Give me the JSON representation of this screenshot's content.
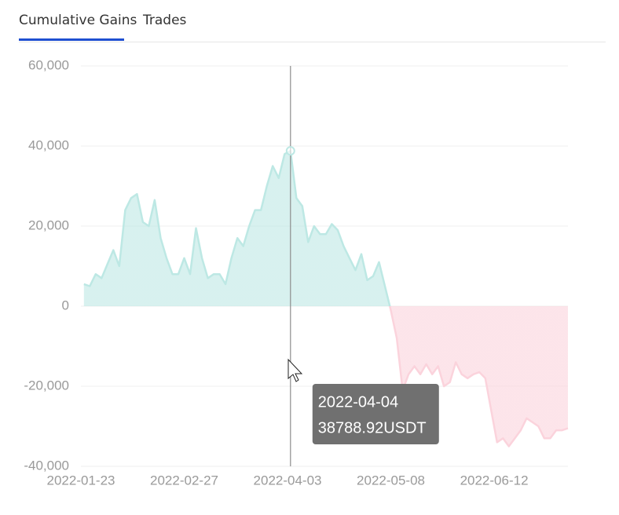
{
  "tabs": [
    {
      "label": "Cumulative Gains",
      "active": true
    },
    {
      "label": "Trades",
      "active": false
    }
  ],
  "chart_data": {
    "type": "area",
    "x": [
      "2022-01-24",
      "2022-01-26",
      "2022-01-28",
      "2022-01-30",
      "2022-02-01",
      "2022-02-03",
      "2022-02-05",
      "2022-02-07",
      "2022-02-09",
      "2022-02-11",
      "2022-02-13",
      "2022-02-15",
      "2022-02-17",
      "2022-02-19",
      "2022-02-21",
      "2022-02-23",
      "2022-02-25",
      "2022-02-27",
      "2022-03-01",
      "2022-03-03",
      "2022-03-05",
      "2022-03-07",
      "2022-03-09",
      "2022-03-11",
      "2022-03-13",
      "2022-03-15",
      "2022-03-17",
      "2022-03-19",
      "2022-03-21",
      "2022-03-23",
      "2022-03-25",
      "2022-03-27",
      "2022-03-29",
      "2022-03-31",
      "2022-04-02",
      "2022-04-04",
      "2022-04-06",
      "2022-04-08",
      "2022-04-10",
      "2022-04-12",
      "2022-04-14",
      "2022-04-16",
      "2022-04-18",
      "2022-04-20",
      "2022-04-22",
      "2022-04-24",
      "2022-04-26",
      "2022-04-28",
      "2022-04-30",
      "2022-05-02",
      "2022-05-04",
      "2022-05-06",
      "2022-05-08",
      "2022-05-10",
      "2022-05-12",
      "2022-05-14",
      "2022-05-16",
      "2022-05-18",
      "2022-05-20",
      "2022-05-22",
      "2022-05-24",
      "2022-05-26",
      "2022-05-28",
      "2022-05-30",
      "2022-06-01",
      "2022-06-03",
      "2022-06-05",
      "2022-06-07",
      "2022-06-09",
      "2022-06-11",
      "2022-06-13",
      "2022-06-15",
      "2022-06-17",
      "2022-06-19",
      "2022-06-21",
      "2022-06-23",
      "2022-06-25",
      "2022-06-27",
      "2022-06-29",
      "2022-07-01",
      "2022-07-03",
      "2022-07-05",
      "2022-07-07"
    ],
    "values": [
      5500,
      5000,
      8000,
      7000,
      10500,
      14000,
      10000,
      24000,
      27000,
      28000,
      21000,
      20000,
      26500,
      17000,
      12000,
      8000,
      8000,
      12000,
      8000,
      19500,
      12000,
      7000,
      8000,
      8000,
      5500,
      12000,
      17000,
      15000,
      20000,
      24000,
      24000,
      30000,
      35000,
      32000,
      38000,
      38788.92,
      27000,
      25000,
      16000,
      20000,
      18000,
      18000,
      20500,
      19000,
      15000,
      12000,
      9000,
      13000,
      6500,
      7500,
      11000,
      5000,
      -1000,
      -8000,
      -21000,
      -17000,
      -15000,
      -17000,
      -14500,
      -17000,
      -15000,
      -20000,
      -19000,
      -14000,
      -17000,
      -18000,
      -17000,
      -16500,
      -18000,
      -26000,
      -34000,
      -33000,
      -35000,
      -33000,
      -31000,
      -28000,
      -29000,
      -30000,
      -33000,
      -33000,
      -31000,
      -31000,
      -30500
    ],
    "xlim": [
      "2022-01-23",
      "2022-07-07"
    ],
    "xticks": [
      "2022-01-23",
      "2022-02-27",
      "2022-04-03",
      "2022-05-08",
      "2022-06-12"
    ],
    "ylim": [
      -40000,
      60000
    ],
    "yticks": [
      {
        "value": -40000,
        "label": "-40,000"
      },
      {
        "value": -20000,
        "label": "-20,000"
      },
      0,
      {
        "value": 20000,
        "label": "20,000"
      },
      {
        "value": 40000,
        "label": "40,000"
      },
      {
        "value": 60000,
        "label": "60,000"
      }
    ],
    "grid": true,
    "positive_color": "#bde8e4",
    "negative_color": "#fbd3dc",
    "tooltip": {
      "x": "2022-04-04",
      "value": 38788.92,
      "label": "38788.92USDT"
    }
  }
}
